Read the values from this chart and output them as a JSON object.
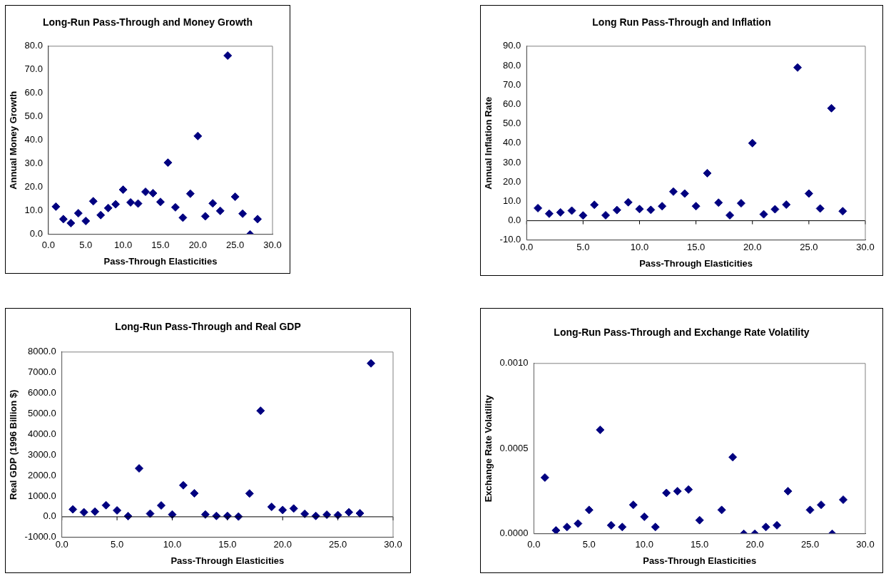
{
  "chart_data": [
    {
      "type": "scatter",
      "title": "Long-Run Pass-Through and Money Growth",
      "xlabel": "Pass-Through Elasticities",
      "ylabel": "Annual Money Growth",
      "marker": "diamond",
      "grid": false,
      "xlim": [
        0,
        30
      ],
      "xticks": [
        {
          "value": 0,
          "label": "0.0"
        },
        {
          "value": 5,
          "label": "5.0"
        },
        {
          "value": 10,
          "label": "10.0"
        },
        {
          "value": 15,
          "label": "15.0"
        },
        {
          "value": 20,
          "label": "20.0"
        },
        {
          "value": 25,
          "label": "25.0"
        },
        {
          "value": 30,
          "label": "30.0"
        }
      ],
      "ylim": [
        0,
        80
      ],
      "yticks": [
        {
          "value": 0,
          "label": "0.0"
        },
        {
          "value": 10,
          "label": "10.0"
        },
        {
          "value": 20,
          "label": "20.0"
        },
        {
          "value": 30,
          "label": "30.0"
        },
        {
          "value": 40,
          "label": "40.0"
        },
        {
          "value": 50,
          "label": "50.0"
        },
        {
          "value": 60,
          "label": "60.0"
        },
        {
          "value": 70,
          "label": "70.0"
        },
        {
          "value": 80,
          "label": "80.0"
        }
      ],
      "x": [
        1,
        2,
        3,
        4,
        5,
        6,
        7,
        8,
        9,
        10,
        11,
        12,
        13,
        14,
        15,
        16,
        17,
        18,
        19,
        20,
        21,
        22,
        23,
        24,
        25,
        26,
        27,
        28
      ],
      "series": [
        {
          "color": "#000080",
          "values": [
            11.8,
            6.5,
            4.8,
            9,
            5.7,
            14.1,
            8.2,
            11.2,
            12.8,
            19,
            13.6,
            13.1,
            18.1,
            17.5,
            13.8,
            30.5,
            11.5,
            7.1,
            17.3,
            41.8,
            7.7,
            13.2,
            10,
            76,
            16,
            8.8,
            0,
            6.5
          ]
        }
      ]
    },
    {
      "type": "scatter",
      "title": "Long Run Pass-Through and Inflation",
      "xlabel": "Pass-Through Elasticities",
      "ylabel": "Annual Inflation Rate",
      "marker": "diamond",
      "grid": false,
      "xlim": [
        0,
        30
      ],
      "xticks": [
        {
          "value": 0,
          "label": "0.0"
        },
        {
          "value": 5,
          "label": "5.0"
        },
        {
          "value": 10,
          "label": "10.0"
        },
        {
          "value": 15,
          "label": "15.0"
        },
        {
          "value": 20,
          "label": "20.0"
        },
        {
          "value": 25,
          "label": "25.0"
        },
        {
          "value": 30,
          "label": "30.0"
        }
      ],
      "ylim": [
        -10,
        90
      ],
      "yticks": [
        {
          "value": -10,
          "label": "-10.0"
        },
        {
          "value": 0,
          "label": "0.0"
        },
        {
          "value": 10,
          "label": "10.0"
        },
        {
          "value": 20,
          "label": "20.0"
        },
        {
          "value": 30,
          "label": "30.0"
        },
        {
          "value": 40,
          "label": "40.0"
        },
        {
          "value": 50,
          "label": "50.0"
        },
        {
          "value": 60,
          "label": "60.0"
        },
        {
          "value": 70,
          "label": "70.0"
        },
        {
          "value": 80,
          "label": "80.0"
        },
        {
          "value": 90,
          "label": "90.0"
        }
      ],
      "ref_lines": [
        {
          "axis": "y",
          "value": 0,
          "color": "#000000"
        }
      ],
      "x": [
        1,
        2,
        3,
        4,
        5,
        6,
        7,
        8,
        9,
        10,
        11,
        12,
        13,
        14,
        15,
        16,
        17,
        18,
        19,
        20,
        21,
        22,
        23,
        24,
        25,
        26,
        27,
        28
      ],
      "series": [
        {
          "color": "#000080",
          "values": [
            6.5,
            3.6,
            4.3,
            5.2,
            2.7,
            8.2,
            2.8,
            5.5,
            9.5,
            6,
            5.6,
            7.5,
            15,
            14,
            7.5,
            24.5,
            9.3,
            2.8,
            9,
            40,
            3.3,
            5.9,
            8.3,
            79,
            14,
            6.3,
            58,
            4.9
          ]
        }
      ]
    },
    {
      "type": "scatter",
      "title": "Long-Run Pass-Through and Real GDP",
      "xlabel": "Pass-Through Elasticities",
      "ylabel": "Real GDP (1996 Billion $)",
      "marker": "diamond",
      "grid": false,
      "xlim": [
        0,
        30
      ],
      "xticks": [
        {
          "value": 0,
          "label": "0.0"
        },
        {
          "value": 5,
          "label": "5.0"
        },
        {
          "value": 10,
          "label": "10.0"
        },
        {
          "value": 15,
          "label": "15.0"
        },
        {
          "value": 20,
          "label": "20.0"
        },
        {
          "value": 25,
          "label": "25.0"
        },
        {
          "value": 30,
          "label": "30.0"
        }
      ],
      "ylim": [
        -1000,
        8000
      ],
      "yticks": [
        {
          "value": -1000,
          "label": "-1000.0"
        },
        {
          "value": 0,
          "label": "0.0"
        },
        {
          "value": 1000,
          "label": "1000.0"
        },
        {
          "value": 2000,
          "label": "2000.0"
        },
        {
          "value": 3000,
          "label": "3000.0"
        },
        {
          "value": 4000,
          "label": "4000.0"
        },
        {
          "value": 5000,
          "label": "5000.0"
        },
        {
          "value": 6000,
          "label": "6000.0"
        },
        {
          "value": 7000,
          "label": "7000.0"
        },
        {
          "value": 8000,
          "label": "8000.0"
        }
      ],
      "ref_lines": [
        {
          "axis": "y",
          "value": 0,
          "color": "#000000"
        }
      ],
      "x": [
        1,
        2,
        3,
        4,
        5,
        6,
        7,
        8,
        9,
        10,
        11,
        12,
        13,
        14,
        15,
        16,
        17,
        18,
        19,
        20,
        21,
        22,
        23,
        24,
        25,
        26,
        27,
        28
      ],
      "series": [
        {
          "color": "#000080",
          "values": [
            360,
            220,
            250,
            560,
            310,
            30,
            2350,
            150,
            550,
            110,
            1530,
            1140,
            110,
            40,
            40,
            10,
            1130,
            5150,
            480,
            330,
            400,
            140,
            40,
            100,
            80,
            220,
            170,
            7450
          ]
        }
      ]
    },
    {
      "type": "scatter",
      "title": "Long-Run Pass-Through and Exchange Rate Volatility",
      "xlabel": "Pass-Through Elasticities",
      "ylabel": "Exchange Rate Volatility",
      "marker": "diamond",
      "grid": false,
      "xlim": [
        0,
        30
      ],
      "xticks": [
        {
          "value": 0,
          "label": "0.0"
        },
        {
          "value": 5,
          "label": "5.0"
        },
        {
          "value": 10,
          "label": "10.0"
        },
        {
          "value": 15,
          "label": "15.0"
        },
        {
          "value": 20,
          "label": "20.0"
        },
        {
          "value": 25,
          "label": "25.0"
        },
        {
          "value": 30,
          "label": "30.0"
        }
      ],
      "ylim": [
        0,
        0.001
      ],
      "yticks": [
        {
          "value": 0,
          "label": "0.0000"
        },
        {
          "value": 0.0005,
          "label": "0.0005"
        },
        {
          "value": 0.001,
          "label": "0.0010"
        }
      ],
      "x": [
        1,
        2,
        3,
        4,
        5,
        6,
        7,
        8,
        9,
        10,
        11,
        12,
        13,
        14,
        15,
        16,
        17,
        18,
        19,
        20,
        21,
        22,
        23,
        24,
        25,
        26,
        27,
        28
      ],
      "series": [
        {
          "color": "#000080",
          "values": [
            0.00033,
            2e-05,
            4e-05,
            6e-05,
            0.00014,
            0.00061,
            5e-05,
            4e-05,
            0.00017,
            0.0001,
            4e-05,
            0.00024,
            0.00025,
            0.00026,
            8e-05,
            null,
            0.00014,
            0.00045,
            0,
            0,
            4e-05,
            5e-05,
            0.00025,
            null,
            0.00014,
            0.00017,
            0,
            0.0002
          ]
        }
      ]
    }
  ]
}
